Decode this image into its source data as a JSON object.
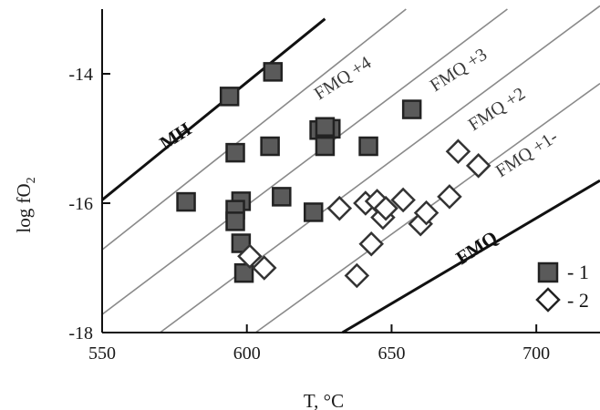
{
  "chart_data": {
    "type": "scatter",
    "xlabel": "T, °C",
    "ylabel": "log fO₂",
    "xlim": [
      550,
      722
    ],
    "ylim": [
      -18,
      -13.0
    ],
    "xticks": [
      550,
      600,
      650,
      700
    ],
    "yticks": [
      -14,
      -16,
      -18
    ],
    "series": [
      {
        "name": "1",
        "marker": "filled-square",
        "color": "#5a5a5a",
        "x": [
          579,
          594,
          609,
          596,
          608,
          612,
          598,
          596,
          596,
          598,
          599,
          623,
          625,
          627,
          629,
          627,
          642,
          657
        ],
        "y": [
          -15.98,
          -14.35,
          -13.97,
          -15.22,
          -15.12,
          -15.9,
          -15.97,
          -16.1,
          -16.28,
          -16.62,
          -17.08,
          -16.14,
          -14.87,
          -15.12,
          -14.85,
          -14.82,
          -15.12,
          -14.55
        ]
      },
      {
        "name": "2",
        "marker": "open-diamond",
        "color": "#333333",
        "x": [
          601,
          606,
          632,
          638,
          641,
          643,
          645,
          647,
          648,
          654,
          660,
          662,
          670,
          673,
          680
        ],
        "y": [
          -16.82,
          -17.0,
          -16.08,
          -17.12,
          -16.0,
          -16.63,
          -15.97,
          -16.22,
          -16.08,
          -15.95,
          -16.32,
          -16.15,
          -15.9,
          -15.2,
          -15.42
        ]
      }
    ],
    "buffer_lines": [
      {
        "label": "MH",
        "x": [
          550,
          627
        ],
        "y": [
          -15.95,
          -13.15
        ],
        "style": "bold"
      },
      {
        "label": "FMQ +4",
        "x": [
          550,
          655
        ],
        "y": [
          -16.72,
          -13.0
        ],
        "style": "thin"
      },
      {
        "label": "FMQ +3",
        "x": [
          550,
          690
        ],
        "y": [
          -17.72,
          -13.0
        ],
        "style": "thin"
      },
      {
        "label": "FMQ +2",
        "x": [
          570,
          722
        ],
        "y": [
          -18.0,
          -12.95
        ],
        "style": "thin"
      },
      {
        "label": "FMQ +1-",
        "x": [
          603,
          722
        ],
        "y": [
          -18.0,
          -14.15
        ],
        "style": "thin"
      },
      {
        "label": "FMQ",
        "x": [
          633,
          722
        ],
        "y": [
          -18.0,
          -15.65
        ],
        "style": "bold"
      }
    ],
    "legend": {
      "position": "bottom-right",
      "entries": [
        "- 1",
        "- 2"
      ]
    }
  },
  "labels": {
    "xlabel": "T, °C",
    "ylabel_main": "log fO",
    "ylabel_sub": "2",
    "mh": "MH",
    "fmq4": "FMQ +4",
    "fmq3": "FMQ +3",
    "fmq2": "FMQ +2",
    "fmq1": "FMQ +1-",
    "fmq": "FMQ",
    "legend_1": "- 1",
    "legend_2": "- 2"
  }
}
